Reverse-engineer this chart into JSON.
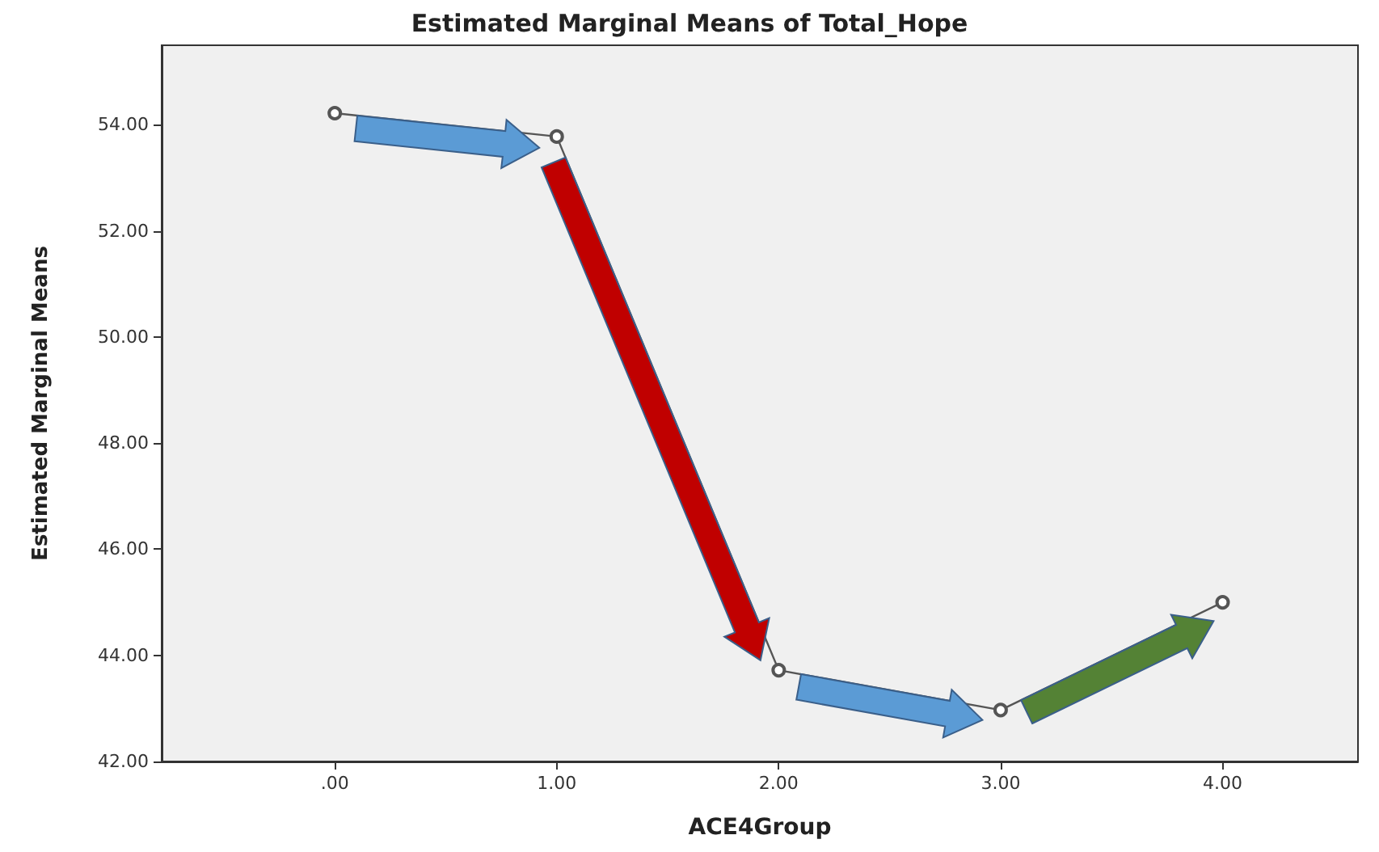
{
  "chart_data": {
    "type": "line",
    "title": "Estimated Marginal Means of Total_Hope",
    "xlabel": "ACE4Group",
    "ylabel": "Estimated Marginal Means",
    "x": [
      0,
      1,
      2,
      3,
      4
    ],
    "series": [
      {
        "color": "#555555",
        "values": [
          54.22,
          53.78,
          43.72,
          42.97,
          45.0
        ]
      }
    ],
    "xlim": [
      -0.78,
      4.61
    ],
    "xticks": [
      {
        "value": 0,
        "label": ".00"
      },
      {
        "value": 1,
        "label": "1.00"
      },
      {
        "value": 2,
        "label": "2.00"
      },
      {
        "value": 3,
        "label": "3.00"
      },
      {
        "value": 4,
        "label": "4.00"
      }
    ],
    "ylim": [
      42,
      55.5
    ],
    "yticks": [
      {
        "value": 42,
        "label": "42.00"
      },
      {
        "value": 44,
        "label": "44.00"
      },
      {
        "value": 46,
        "label": "46.00"
      },
      {
        "value": 48,
        "label": "48.00"
      },
      {
        "value": 50,
        "label": "50.00"
      },
      {
        "value": 52,
        "label": "52.00"
      },
      {
        "value": 54,
        "label": "54.00"
      }
    ],
    "grid": false,
    "marker": "circle",
    "line_style": "solid"
  }
}
